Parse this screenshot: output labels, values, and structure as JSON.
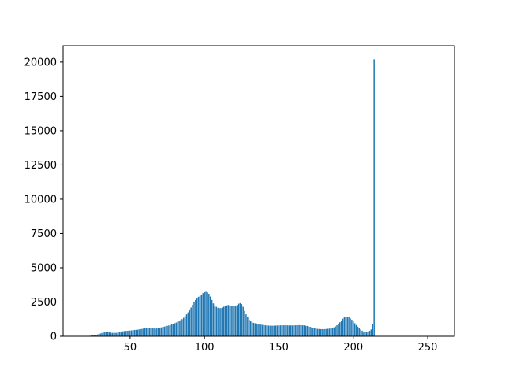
{
  "chart_data": {
    "type": "bar",
    "title": "",
    "xlabel": "",
    "ylabel": "",
    "xlim": [
      5,
      268
    ],
    "ylim": [
      0,
      21200
    ],
    "xticks": [
      50,
      100,
      150,
      200,
      250
    ],
    "yticks": [
      0,
      2500,
      5000,
      7500,
      10000,
      12500,
      15000,
      17500,
      20000
    ],
    "xtick_labels": [
      "50",
      "100",
      "150",
      "200",
      "250"
    ],
    "ytick_labels": [
      "0",
      "2500",
      "5000",
      "7500",
      "10000",
      "12500",
      "15000",
      "17500",
      "20000"
    ],
    "grid": false,
    "bar_color": "#1f77b4",
    "x_start": 20,
    "values": [
      5,
      10,
      20,
      35,
      50,
      60,
      80,
      100,
      130,
      160,
      200,
      240,
      280,
      310,
      320,
      310,
      290,
      270,
      250,
      250,
      250,
      255,
      280,
      310,
      340,
      360,
      380,
      390,
      400,
      410,
      420,
      430,
      450,
      460,
      470,
      480,
      500,
      520,
      540,
      560,
      580,
      600,
      610,
      620,
      600,
      580,
      570,
      560,
      570,
      590,
      620,
      650,
      680,
      700,
      730,
      760,
      790,
      820,
      860,
      900,
      950,
      1000,
      1050,
      1100,
      1170,
      1250,
      1350,
      1470,
      1600,
      1750,
      1900,
      2100,
      2300,
      2500,
      2650,
      2780,
      2880,
      2950,
      3050,
      3150,
      3220,
      3250,
      3200,
      3100,
      2900,
      2650,
      2400,
      2250,
      2150,
      2080,
      2050,
      2060,
      2100,
      2160,
      2220,
      2260,
      2280,
      2260,
      2230,
      2200,
      2190,
      2200,
      2280,
      2380,
      2420,
      2350,
      2150,
      1850,
      1600,
      1400,
      1220,
      1100,
      1020,
      980,
      950,
      930,
      910,
      880,
      850,
      830,
      810,
      800,
      790,
      780,
      775,
      770,
      770,
      775,
      780,
      785,
      790,
      795,
      800,
      800,
      800,
      800,
      795,
      790,
      790,
      790,
      795,
      800,
      805,
      810,
      810,
      805,
      800,
      790,
      770,
      750,
      720,
      690,
      650,
      610,
      580,
      560,
      540,
      530,
      520,
      520,
      520,
      525,
      530,
      545,
      560,
      580,
      610,
      650,
      720,
      800,
      900,
      1020,
      1150,
      1280,
      1380,
      1430,
      1420,
      1380,
      1300,
      1200,
      1080,
      950,
      820,
      700,
      590,
      490,
      410,
      350,
      320,
      310,
      330,
      400,
      500,
      900,
      20200
    ]
  }
}
